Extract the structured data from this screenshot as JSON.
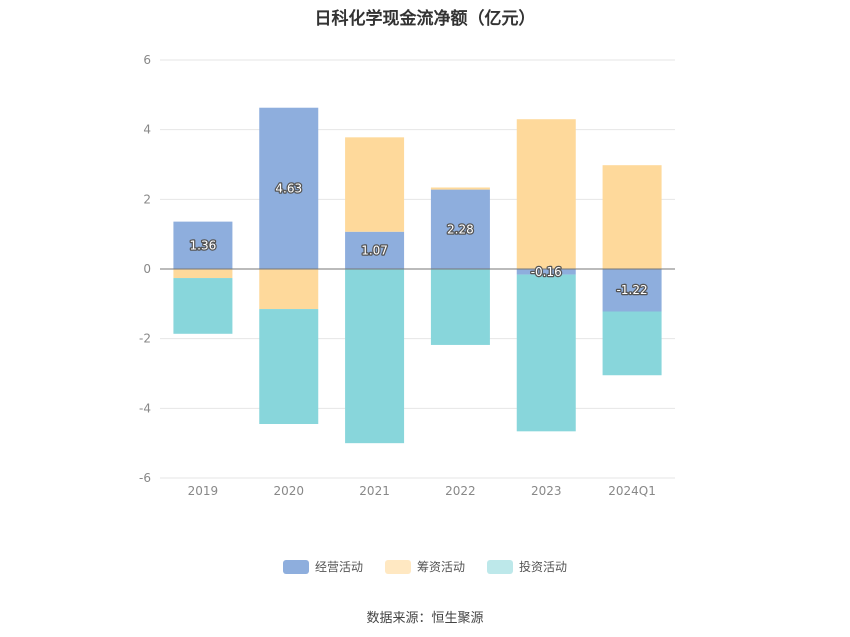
{
  "chart_data": {
    "type": "bar",
    "stacked": true,
    "title": "日科化学现金流净额（亿元）",
    "xlabel": "",
    "ylabel": "",
    "ylim": [
      -6,
      6
    ],
    "yticks": [
      6,
      4,
      2,
      0,
      -2,
      -4,
      -6
    ],
    "categories": [
      "2019",
      "2020",
      "2021",
      "2022",
      "2023",
      "2024Q1"
    ],
    "series": [
      {
        "name": "经营活动",
        "color": "#8eaedd",
        "values": [
          1.36,
          4.63,
          1.07,
          2.28,
          -0.16,
          -1.22
        ],
        "labels": [
          "1.36",
          "4.63",
          "1.07",
          "2.28",
          "-0.16",
          "-1.22"
        ]
      },
      {
        "name": "筹资活动",
        "color": "#fed99b",
        "legend_color": "#ffe8c2",
        "values": [
          -0.26,
          -1.15,
          2.71,
          0.06,
          4.3,
          2.98
        ]
      },
      {
        "name": "投资活动",
        "color": "#88d6db",
        "legend_color": "#bde8ea",
        "values": [
          -1.6,
          -3.3,
          -5.0,
          -2.18,
          -4.5,
          -1.83
        ]
      }
    ],
    "grid": true,
    "legend_position": "bottom"
  },
  "source": {
    "label": "数据来源：",
    "value": "恒生聚源"
  }
}
